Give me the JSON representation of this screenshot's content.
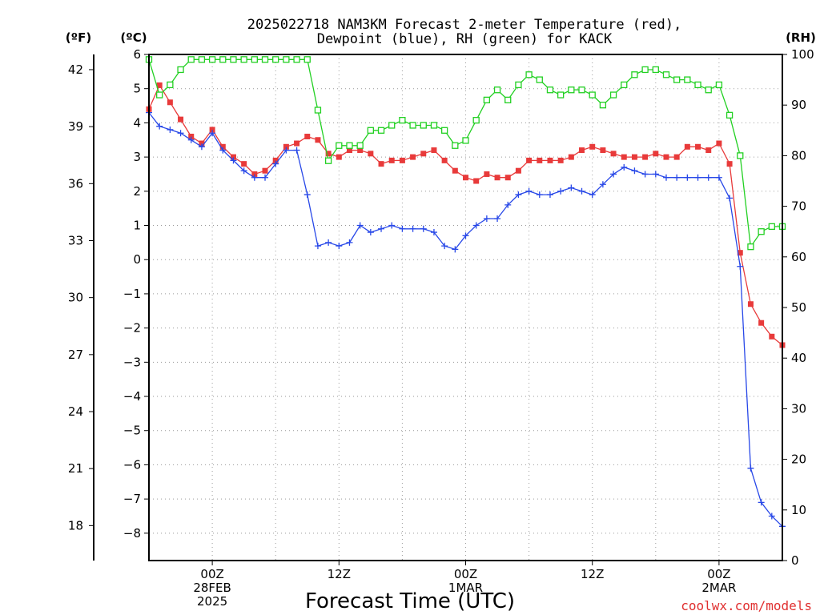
{
  "chart_data": {
    "type": "line",
    "title_line1": "2025022718 NAM3KM Forecast 2-meter Temperature (red),",
    "title_line2": "Dewpoint (blue), RH (green) for KACK",
    "units": {
      "fahrenheit": "(ºF)",
      "celsius": "(ºC)",
      "rh": "(RH)"
    },
    "xlabel": "Forecast Time (UTC)",
    "credit": "coolwx.com/models",
    "x_range_hours": [
      0,
      60
    ],
    "x_ticks": [
      {
        "hour": 6,
        "lines": [
          "00Z",
          "28FEB",
          "2025"
        ]
      },
      {
        "hour": 18,
        "lines": [
          "12Z"
        ]
      },
      {
        "hour": 30,
        "lines": [
          "00Z",
          "1MAR"
        ]
      },
      {
        "hour": 42,
        "lines": [
          "12Z"
        ]
      },
      {
        "hour": 54,
        "lines": [
          "00Z",
          "2MAR"
        ]
      }
    ],
    "y_celsius": {
      "range": [
        -8.8,
        6
      ],
      "ticks": [
        6,
        5,
        4,
        3,
        2,
        1,
        0,
        -1,
        -2,
        -3,
        -4,
        -5,
        -6,
        -7,
        -8
      ],
      "tick_labels": [
        "6",
        "5",
        "4",
        "3",
        "2",
        "1",
        "0",
        "−1",
        "−2",
        "−3",
        "−4",
        "−5",
        "−6",
        "−7",
        "−8"
      ]
    },
    "y_fahrenheit": {
      "ticks": [
        42,
        39,
        36,
        33,
        30,
        27,
        24,
        21,
        18
      ],
      "tick_labels": [
        "42",
        "39",
        "36",
        "33",
        "30",
        "27",
        "24",
        "21",
        "18"
      ]
    },
    "y_rh": {
      "range": [
        0,
        100
      ],
      "ticks": [
        100,
        90,
        80,
        70,
        60,
        50,
        40,
        30,
        20,
        10,
        0
      ],
      "tick_labels": [
        "100",
        "90",
        "80",
        "70",
        "60",
        "50",
        "40",
        "30",
        "20",
        "10",
        "0"
      ]
    },
    "grid": true,
    "series": [
      {
        "name": "Temperature",
        "axis": "celsius",
        "color": "#e83a3a",
        "marker": "filled-square",
        "x": [
          0,
          1,
          2,
          3,
          4,
          5,
          6,
          7,
          8,
          9,
          10,
          11,
          12,
          13,
          14,
          15,
          16,
          17,
          18,
          19,
          20,
          21,
          22,
          23,
          24,
          25,
          26,
          27,
          28,
          29,
          30,
          31,
          32,
          33,
          34,
          35,
          36,
          37,
          38,
          39,
          40,
          41,
          42,
          43,
          44,
          45,
          46,
          47,
          48,
          49,
          50,
          51,
          52,
          53,
          54,
          55,
          56,
          57,
          58,
          59,
          60
        ],
        "values": [
          4.4,
          5.1,
          4.6,
          4.1,
          3.6,
          3.4,
          3.8,
          3.3,
          3.0,
          2.8,
          2.5,
          2.6,
          2.9,
          3.3,
          3.4,
          3.6,
          3.5,
          3.1,
          3.0,
          3.2,
          3.2,
          3.1,
          2.8,
          2.9,
          2.9,
          3.0,
          3.1,
          3.2,
          2.9,
          2.6,
          2.4,
          2.3,
          2.5,
          2.4,
          2.4,
          2.6,
          2.9,
          2.9,
          2.9,
          2.9,
          3.0,
          3.2,
          3.3,
          3.2,
          3.1,
          3.0,
          3.0,
          3.0,
          3.1,
          3.0,
          3.0,
          3.3,
          3.3,
          3.2,
          3.4,
          2.8,
          0.2,
          -1.3,
          -1.85,
          -2.25,
          -2.5
        ]
      },
      {
        "name": "Dewpoint",
        "axis": "celsius",
        "color": "#2848e8",
        "marker": "plus",
        "x": [
          0,
          1,
          2,
          3,
          4,
          5,
          6,
          7,
          8,
          9,
          10,
          11,
          12,
          13,
          14,
          15,
          16,
          17,
          18,
          19,
          20,
          21,
          22,
          23,
          24,
          25,
          26,
          27,
          28,
          29,
          30,
          31,
          32,
          33,
          34,
          35,
          36,
          37,
          38,
          39,
          40,
          41,
          42,
          43,
          44,
          45,
          46,
          47,
          48,
          49,
          50,
          51,
          52,
          53,
          54,
          55,
          56,
          57,
          58,
          59,
          60
        ],
        "values": [
          4.3,
          3.9,
          3.8,
          3.7,
          3.5,
          3.3,
          3.7,
          3.2,
          2.9,
          2.6,
          2.4,
          2.4,
          2.8,
          3.2,
          3.2,
          1.9,
          0.4,
          0.5,
          0.4,
          0.5,
          1.0,
          0.8,
          0.9,
          1.0,
          0.9,
          0.9,
          0.9,
          0.8,
          0.4,
          0.3,
          0.7,
          1.0,
          1.2,
          1.2,
          1.6,
          1.9,
          2.0,
          1.9,
          1.9,
          2.0,
          2.1,
          2.0,
          1.9,
          2.2,
          2.5,
          2.7,
          2.6,
          2.5,
          2.5,
          2.4,
          2.4,
          2.4,
          2.4,
          2.4,
          2.4,
          1.8,
          -0.2,
          -6.1,
          -7.1,
          -7.5,
          -7.8
        ]
      },
      {
        "name": "RH",
        "axis": "rh",
        "color": "#22d022",
        "marker": "open-square",
        "x": [
          0,
          1,
          2,
          3,
          4,
          5,
          6,
          7,
          8,
          9,
          10,
          11,
          12,
          13,
          14,
          15,
          16,
          17,
          18,
          19,
          20,
          21,
          22,
          23,
          24,
          25,
          26,
          27,
          28,
          29,
          30,
          31,
          32,
          33,
          34,
          35,
          36,
          37,
          38,
          39,
          40,
          41,
          42,
          43,
          44,
          45,
          46,
          47,
          48,
          49,
          50,
          51,
          52,
          53,
          54,
          55,
          56,
          57,
          58,
          59,
          60
        ],
        "values": [
          99,
          92,
          94,
          97,
          99,
          99,
          99,
          99,
          99,
          99,
          99,
          99,
          99,
          99,
          99,
          99,
          89,
          79,
          82,
          82,
          82,
          85,
          85,
          86,
          87,
          86,
          86,
          86,
          85,
          82,
          83,
          87,
          91,
          93,
          91,
          94,
          96,
          95,
          93,
          92,
          93,
          93,
          92,
          90,
          92,
          94,
          96,
          97,
          97,
          96,
          95,
          95,
          94,
          93,
          94,
          88,
          80,
          62,
          65,
          66,
          66
        ]
      }
    ]
  }
}
